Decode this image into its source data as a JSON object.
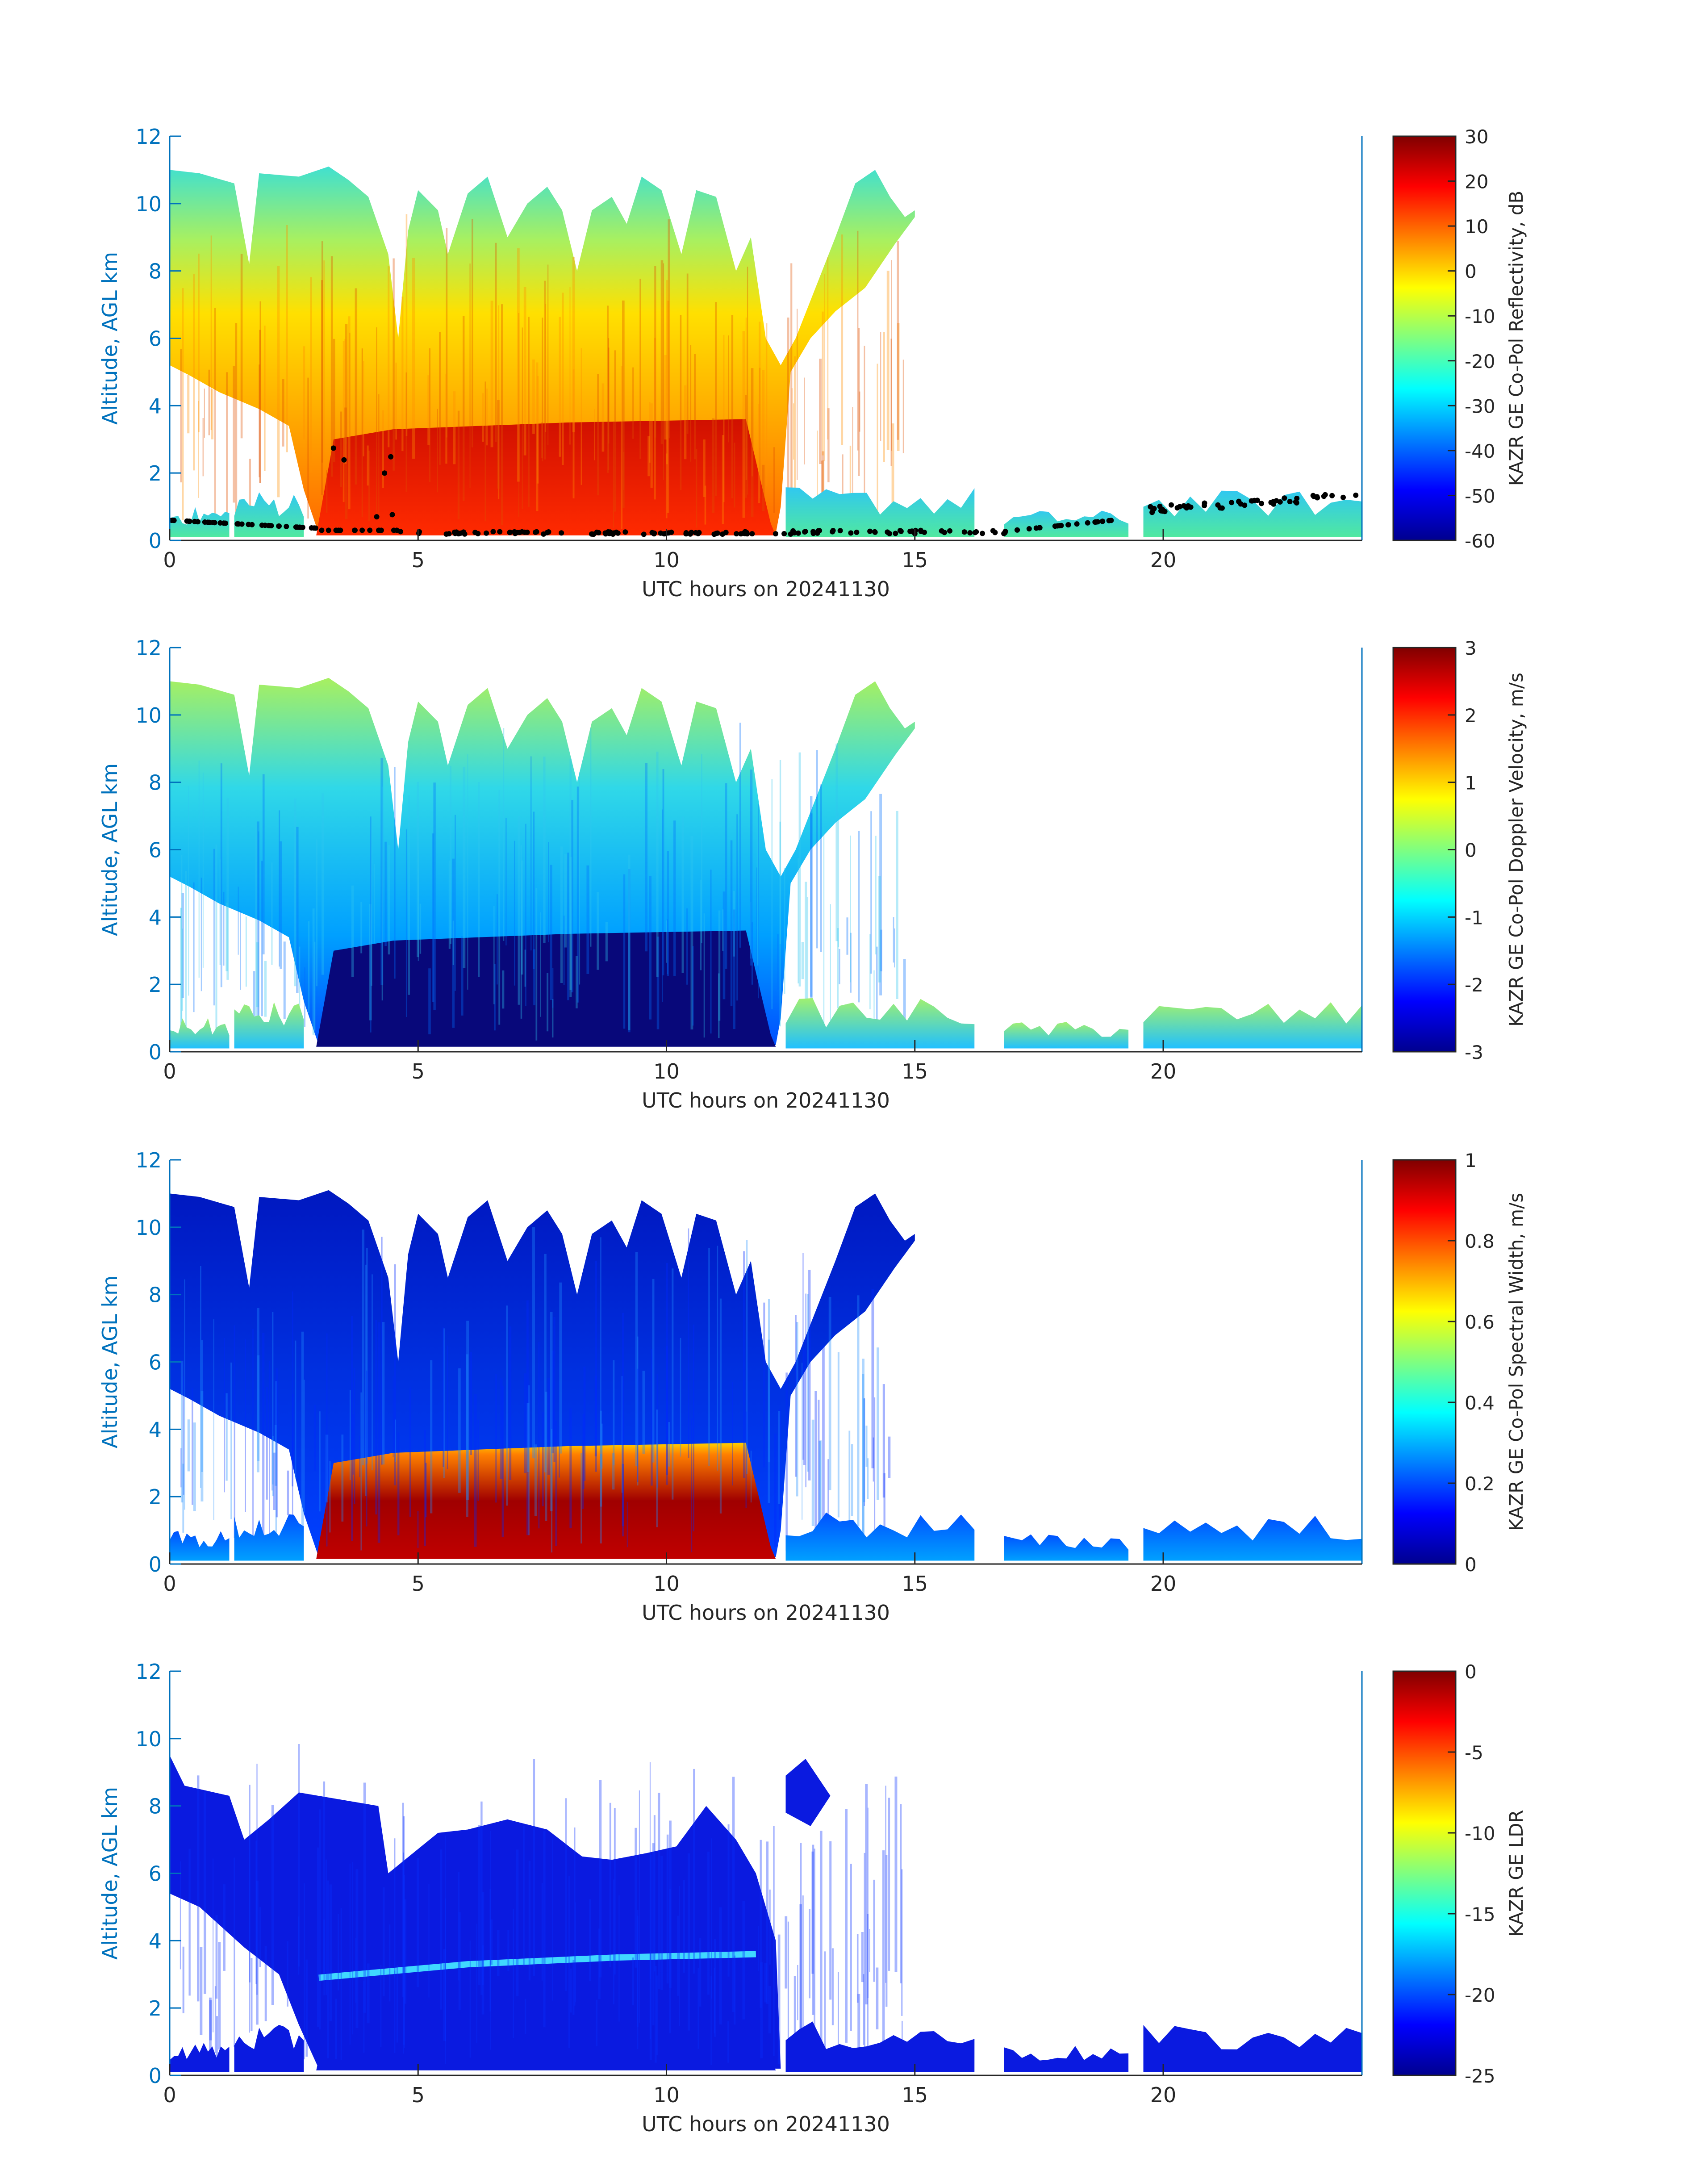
{
  "colors": {
    "axis": "#0072BD",
    "text": "#262626",
    "colorbar_text": "#262626"
  },
  "chart_data": [
    {
      "type": "heatmap",
      "xlabel": "UTC hours on 20241130",
      "ylabel": "Altitude, AGL km",
      "xlim": [
        0,
        24
      ],
      "ylim": [
        0,
        12
      ],
      "xticks": [
        "0",
        "5",
        "10",
        "15",
        "20"
      ],
      "yticks": [
        "0",
        "2",
        "4",
        "6",
        "8",
        "10",
        "12"
      ],
      "colorbar": {
        "label": "KAZR GE Co-Pol Reflectivity, dB",
        "range": [
          -60,
          30
        ],
        "ticks": [
          "-60",
          "-50",
          "-40",
          "-30",
          "-20",
          "-10",
          "0",
          "10",
          "20",
          "30"
        ]
      },
      "overlay": "black dots marking lowest cloud base",
      "cloud_top_km": [
        [
          0,
          11
        ],
        [
          2,
          10.8
        ],
        [
          3,
          11.2
        ],
        [
          4.5,
          8.5
        ],
        [
          5,
          10.5
        ],
        [
          6,
          11
        ],
        [
          7,
          10.5
        ],
        [
          8,
          10
        ],
        [
          9,
          11
        ],
        [
          10,
          10.5
        ],
        [
          11,
          10.5
        ],
        [
          12.5,
          6
        ],
        [
          13.5,
          10
        ],
        [
          14,
          11
        ],
        [
          15,
          10
        ]
      ],
      "low_cloud_segments": [
        [
          12.5,
          16.2,
          1.5
        ],
        [
          16.8,
          19.3,
          0.8
        ],
        [
          19.6,
          24,
          1.4
        ]
      ],
      "rain_region": {
        "x": [
          3,
          12.2
        ],
        "top_km": 3.5
      }
    },
    {
      "type": "heatmap",
      "xlabel": "UTC hours on 20241130",
      "ylabel": "Altitude, AGL km",
      "xlim": [
        0,
        24
      ],
      "ylim": [
        0,
        12
      ],
      "xticks": [
        "0",
        "5",
        "10",
        "15",
        "20"
      ],
      "yticks": [
        "0",
        "2",
        "4",
        "6",
        "8",
        "10",
        "12"
      ],
      "colorbar": {
        "label": "KAZR GE Co-Pol Doppler Velocity, m/s",
        "range": [
          -3,
          3
        ],
        "ticks": [
          "-3",
          "-2",
          "-1",
          "0",
          "1",
          "2",
          "3"
        ]
      }
    },
    {
      "type": "heatmap",
      "xlabel": "UTC hours on 20241130",
      "ylabel": "Altitude, AGL km",
      "xlim": [
        0,
        24
      ],
      "ylim": [
        0,
        12
      ],
      "xticks": [
        "0",
        "5",
        "10",
        "15",
        "20"
      ],
      "yticks": [
        "0",
        "2",
        "4",
        "6",
        "8",
        "10",
        "12"
      ],
      "colorbar": {
        "label": "KAZR GE Co-Pol Spectral Width, m/s",
        "range": [
          0,
          1
        ],
        "ticks": [
          "0",
          "0.2",
          "0.4",
          "0.6",
          "0.8",
          "1"
        ]
      }
    },
    {
      "type": "heatmap",
      "xlabel": "UTC hours on 20241130",
      "ylabel": "Altitude, AGL km",
      "xlim": [
        0,
        24
      ],
      "ylim": [
        0,
        12
      ],
      "xticks": [
        "0",
        "5",
        "10",
        "15",
        "20"
      ],
      "yticks": [
        "0",
        "2",
        "4",
        "6",
        "8",
        "10",
        "12"
      ],
      "colorbar": {
        "label": "KAZR GE LDR",
        "range": [
          -25,
          0
        ],
        "ticks": [
          "-25",
          "-20",
          "-15",
          "-10",
          "-5",
          "0"
        ]
      },
      "melting_layer_km": [
        [
          3,
          2.9
        ],
        [
          6,
          3.3
        ],
        [
          9,
          3.5
        ],
        [
          11.8,
          3.6
        ]
      ]
    }
  ]
}
